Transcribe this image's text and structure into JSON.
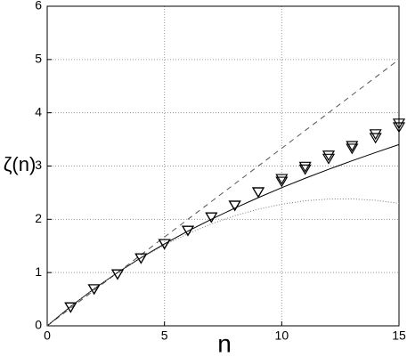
{
  "chart_data": {
    "type": "line",
    "xlabel": "n",
    "ylabel": "ζ(n)",
    "xlim": [
      0,
      15
    ],
    "ylim": [
      0,
      6
    ],
    "xticks": [
      0,
      5,
      10,
      15
    ],
    "yticks": [
      0,
      1,
      2,
      3,
      4,
      5,
      6
    ],
    "grid": true,
    "series": [
      {
        "style": "dashed",
        "color": "#555555",
        "x": [
          0,
          15
        ],
        "values": [
          0,
          5
        ]
      },
      {
        "style": "solid",
        "color": "#000000",
        "x": [
          0,
          1,
          2,
          3,
          4,
          5,
          6,
          7,
          8,
          9,
          10,
          11,
          12,
          13,
          14,
          15
        ],
        "values": [
          0,
          0.364,
          0.696,
          1.0,
          1.279,
          1.538,
          1.778,
          2.001,
          2.21,
          2.407,
          2.594,
          2.77,
          2.938,
          3.099,
          3.254,
          3.403
        ]
      },
      {
        "style": "dotted",
        "color": "#777777",
        "x": [
          0,
          1,
          2,
          3,
          4,
          5,
          6,
          7,
          8,
          9,
          10,
          11,
          12,
          13,
          14,
          15
        ],
        "values": [
          0,
          0.363,
          0.697,
          1.0,
          1.273,
          1.517,
          1.73,
          1.913,
          2.067,
          2.19,
          2.283,
          2.347,
          2.38,
          2.383,
          2.357,
          2.3
        ]
      },
      {
        "style": "marker",
        "color": "#000000",
        "x": [
          1,
          2,
          3,
          4,
          5,
          6,
          7,
          8,
          9,
          10,
          11,
          12,
          13,
          14,
          15
        ],
        "values": [
          0.35,
          0.69,
          0.97,
          1.27,
          1.54,
          1.79,
          2.04,
          2.26,
          2.51,
          2.71,
          2.94,
          3.14,
          3.33,
          3.53,
          3.73
        ]
      },
      {
        "style": "marker",
        "color": "#000000",
        "x": [
          1,
          2,
          3,
          4,
          5,
          6,
          7,
          8,
          9,
          10,
          11,
          12,
          13,
          14,
          15
        ],
        "values": [
          0.35,
          0.69,
          0.97,
          1.27,
          1.54,
          1.79,
          2.04,
          2.26,
          2.51,
          2.76,
          2.99,
          3.2,
          3.38,
          3.6,
          3.8
        ]
      }
    ]
  }
}
